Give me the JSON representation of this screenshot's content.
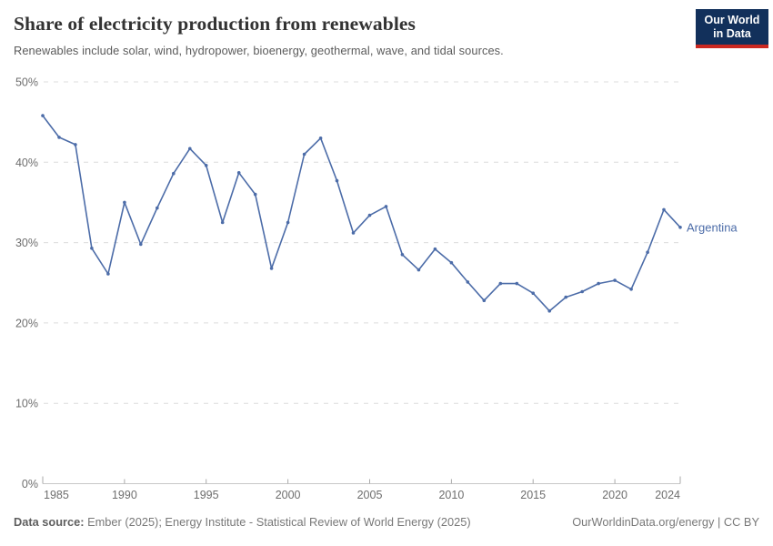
{
  "header": {
    "title": "Share of electricity production from renewables",
    "subtitle": "Renewables include solar, wind, hydropower, bioenergy, geothermal, wave, and tidal sources."
  },
  "logo": {
    "line1": "Our World",
    "line2": "in Data"
  },
  "footer": {
    "source_label": "Data source:",
    "source_text": " Ember (2025); Energy Institute - Statistical Review of World Energy (2025)",
    "site_link": "OurWorldinData.org/energy",
    "separator": " | ",
    "license": "CC BY"
  },
  "colors": {
    "line": "#4c6ca8",
    "grid": "#dcdcdc",
    "axis": "#c8c8c8",
    "axis_tick": "#a9a9a9",
    "tick_label": "#6e6e6e",
    "title": "#333333",
    "subtitle": "#5b5b5b",
    "logo_bg": "#12305b",
    "logo_bar": "#cb2821"
  },
  "chart_data": {
    "type": "line",
    "title": "Share of electricity production from renewables",
    "subtitle": "Renewables include solar, wind, hydropower, bioenergy, geothermal, wave, and tidal sources.",
    "unit": "%",
    "xlim": [
      1985,
      2024
    ],
    "ylim": [
      0,
      50
    ],
    "yticks": [
      0,
      10,
      20,
      30,
      40,
      50
    ],
    "xticks": [
      1985,
      1990,
      1995,
      2000,
      2005,
      2010,
      2015,
      2020,
      2024
    ],
    "grid": "dashed-horizontal",
    "legend": "end-of-line-label",
    "series": [
      {
        "name": "Argentina",
        "x": [
          1985,
          1986,
          1987,
          1988,
          1989,
          1990,
          1991,
          1992,
          1993,
          1994,
          1995,
          1996,
          1997,
          1998,
          1999,
          2000,
          2001,
          2002,
          2003,
          2004,
          2005,
          2006,
          2007,
          2008,
          2009,
          2010,
          2011,
          2012,
          2013,
          2014,
          2015,
          2016,
          2017,
          2018,
          2019,
          2020,
          2021,
          2022,
          2023,
          2024
        ],
        "values": [
          45.8,
          43.1,
          42.2,
          29.3,
          26.1,
          35.0,
          29.8,
          34.3,
          38.6,
          41.7,
          39.6,
          32.5,
          38.7,
          36.0,
          26.8,
          32.5,
          41.0,
          43.0,
          37.7,
          31.2,
          33.4,
          34.5,
          28.5,
          26.6,
          29.2,
          27.5,
          25.1,
          22.8,
          24.9,
          24.9,
          23.7,
          21.5,
          23.2,
          23.9,
          24.9,
          25.3,
          24.2,
          28.8,
          34.1,
          31.9
        ]
      }
    ]
  }
}
